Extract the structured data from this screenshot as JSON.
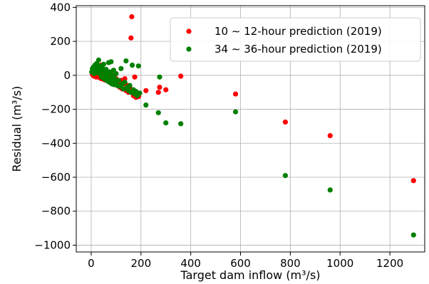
{
  "chart_data": {
    "type": "scatter",
    "title": "",
    "xlabel": "Target dam inflow (m³/s)",
    "ylabel": "Residual (m³/s)",
    "xlim": [
      -60,
      1340
    ],
    "ylim": [
      -1040,
      410
    ],
    "xticks": [
      0,
      200,
      400,
      600,
      800,
      1000,
      1200
    ],
    "yticks": [
      400,
      200,
      0,
      -200,
      -400,
      -600,
      -800,
      -1000
    ],
    "xtick_labels": [
      "0",
      "200",
      "400",
      "600",
      "800",
      "1000",
      "1200"
    ],
    "ytick_labels": [
      "400",
      "200",
      "0",
      "−200",
      "−400",
      "−600",
      "−800",
      "−1000"
    ],
    "grid": true,
    "legend_position": "top-right",
    "series": [
      {
        "name": "10 ∼ 12-hour prediction (2019)",
        "color": "#ff0000",
        "points": [
          [
            5,
            5
          ],
          [
            8,
            0
          ],
          [
            10,
            10
          ],
          [
            12,
            -5
          ],
          [
            15,
            8
          ],
          [
            18,
            2
          ],
          [
            20,
            -10
          ],
          [
            22,
            15
          ],
          [
            25,
            5
          ],
          [
            28,
            -8
          ],
          [
            30,
            0
          ],
          [
            32,
            12
          ],
          [
            35,
            -15
          ],
          [
            38,
            5
          ],
          [
            40,
            60
          ],
          [
            42,
            -20
          ],
          [
            45,
            10
          ],
          [
            48,
            -5
          ],
          [
            50,
            20
          ],
          [
            52,
            -25
          ],
          [
            55,
            0
          ],
          [
            58,
            15
          ],
          [
            60,
            -30
          ],
          [
            62,
            10
          ],
          [
            65,
            5
          ],
          [
            68,
            -15
          ],
          [
            70,
            -20
          ],
          [
            72,
            0
          ],
          [
            75,
            -35
          ],
          [
            78,
            10
          ],
          [
            80,
            -10
          ],
          [
            82,
            -40
          ],
          [
            85,
            -25
          ],
          [
            88,
            -5
          ],
          [
            90,
            -45
          ],
          [
            92,
            -15
          ],
          [
            95,
            -50
          ],
          [
            98,
            -30
          ],
          [
            100,
            -20
          ],
          [
            105,
            -60
          ],
          [
            110,
            -40
          ],
          [
            115,
            -70
          ],
          [
            120,
            -30
          ],
          [
            125,
            -80
          ],
          [
            130,
            -50
          ],
          [
            135,
            -20
          ],
          [
            140,
            -90
          ],
          [
            145,
            -60
          ],
          [
            150,
            -100
          ],
          [
            155,
            -70
          ],
          [
            160,
            220
          ],
          [
            163,
            345
          ],
          [
            170,
            -120
          ],
          [
            175,
            -10
          ],
          [
            180,
            -130
          ],
          [
            185,
            -110
          ],
          [
            190,
            -125
          ],
          [
            220,
            -90
          ],
          [
            270,
            -100
          ],
          [
            275,
            -70
          ],
          [
            300,
            -85
          ],
          [
            360,
            -5
          ],
          [
            580,
            -110
          ],
          [
            780,
            -275
          ],
          [
            960,
            -355
          ],
          [
            1295,
            -620
          ]
        ]
      },
      {
        "name": "34 ∼ 36-hour prediction (2019)",
        "color": "#008000",
        "points": [
          [
            2,
            20
          ],
          [
            5,
            40
          ],
          [
            8,
            30
          ],
          [
            10,
            50
          ],
          [
            12,
            10
          ],
          [
            15,
            60
          ],
          [
            18,
            25
          ],
          [
            20,
            35
          ],
          [
            22,
            70
          ],
          [
            25,
            15
          ],
          [
            28,
            45
          ],
          [
            30,
            90
          ],
          [
            32,
            20
          ],
          [
            35,
            55
          ],
          [
            38,
            5
          ],
          [
            40,
            30
          ],
          [
            42,
            -10
          ],
          [
            45,
            40
          ],
          [
            48,
            0
          ],
          [
            50,
            65
          ],
          [
            52,
            -20
          ],
          [
            55,
            25
          ],
          [
            58,
            -5
          ],
          [
            60,
            35
          ],
          [
            62,
            -30
          ],
          [
            65,
            10
          ],
          [
            68,
            -15
          ],
          [
            70,
            75
          ],
          [
            72,
            -40
          ],
          [
            75,
            20
          ],
          [
            78,
            -25
          ],
          [
            80,
            80
          ],
          [
            82,
            -50
          ],
          [
            85,
            0
          ],
          [
            88,
            -35
          ],
          [
            90,
            30
          ],
          [
            92,
            -55
          ],
          [
            95,
            -20
          ],
          [
            98,
            -45
          ],
          [
            100,
            10
          ],
          [
            105,
            -60
          ],
          [
            110,
            -30
          ],
          [
            115,
            -65
          ],
          [
            120,
            40
          ],
          [
            125,
            -50
          ],
          [
            130,
            -80
          ],
          [
            135,
            -40
          ],
          [
            140,
            85
          ],
          [
            145,
            -70
          ],
          [
            150,
            -90
          ],
          [
            155,
            -60
          ],
          [
            160,
            -100
          ],
          [
            165,
            60
          ],
          [
            170,
            -85
          ],
          [
            175,
            -110
          ],
          [
            180,
            -95
          ],
          [
            185,
            -120
          ],
          [
            190,
            55
          ],
          [
            195,
            -105
          ],
          [
            220,
            -175
          ],
          [
            270,
            -220
          ],
          [
            275,
            -10
          ],
          [
            300,
            -280
          ],
          [
            360,
            -285
          ],
          [
            580,
            -215
          ],
          [
            780,
            -590
          ],
          [
            960,
            -675
          ],
          [
            1295,
            -940
          ]
        ]
      }
    ]
  }
}
